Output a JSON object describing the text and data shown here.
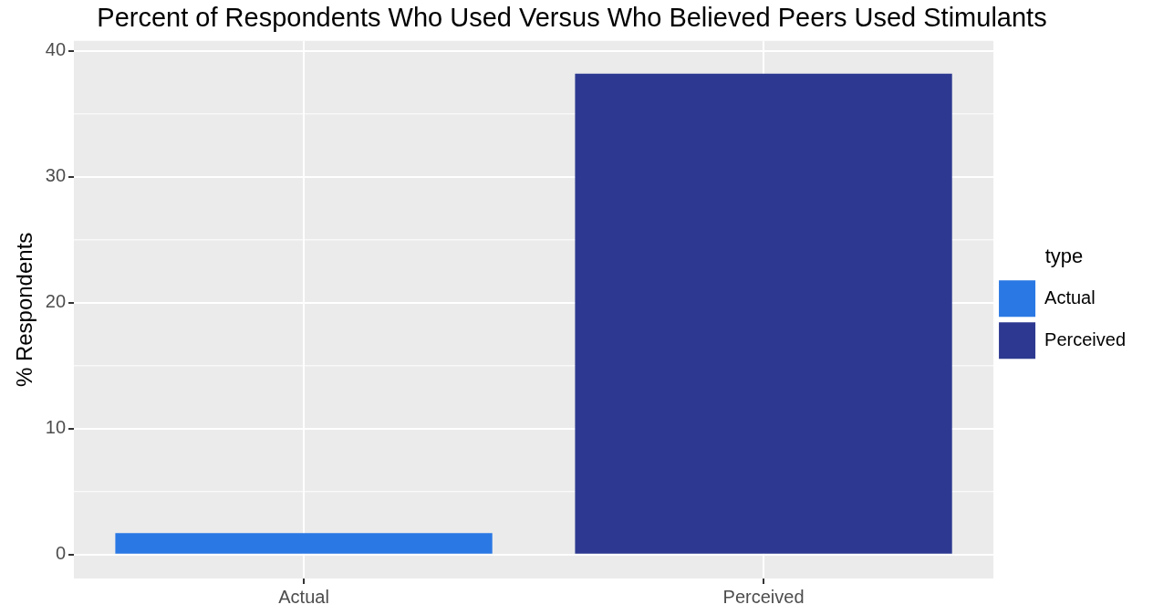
{
  "chart_data": {
    "type": "bar",
    "title": "Percent of Respondents Who Used Versus Who Believed Peers Used Stimulants",
    "ylabel": "% Respondents",
    "legend_title": "type",
    "categories": [
      "Actual",
      "Perceived"
    ],
    "series": [
      {
        "name": "Actual",
        "color": "#2a78e4",
        "values": [
          1.7,
          null
        ]
      },
      {
        "name": "Perceived",
        "color": "#2d3990",
        "values": [
          null,
          38.2
        ]
      }
    ],
    "ylim": [
      -1.9,
      40.8
    ],
    "yticks": [
      0,
      10,
      20,
      30,
      40
    ],
    "grid": true,
    "legend": "right"
  }
}
